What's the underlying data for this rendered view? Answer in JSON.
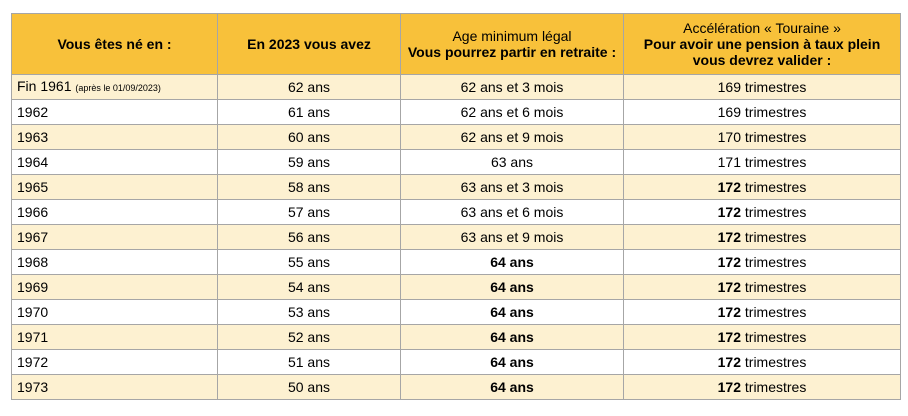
{
  "headers": {
    "col1": "Vous êtes né en :",
    "col2": "En 2023 vous avez",
    "col3_line1": "Age minimum légal",
    "col3_line2": "Vous pourrez partir en retraite :",
    "col4_line1": "Accélération « Touraine »",
    "col4_line2": "Pour avoir une pension à taux plein",
    "col4_line3": "vous devrez valider :"
  },
  "rows": [
    {
      "year": "Fin 1961",
      "year_note": "(après le 01/09/2023)",
      "age2023": "62 ans",
      "min_age": "62 ans et 3 mois",
      "min_age_bold": false,
      "quarters_num": "169",
      "quarters_unit": "trimestres",
      "quarters_bold": false
    },
    {
      "year": "1962",
      "year_note": "",
      "age2023": "61 ans",
      "min_age": "62 ans et 6 mois",
      "min_age_bold": false,
      "quarters_num": "169",
      "quarters_unit": "trimestres",
      "quarters_bold": false
    },
    {
      "year": "1963",
      "year_note": "",
      "age2023": "60 ans",
      "min_age": "62 ans et 9 mois",
      "min_age_bold": false,
      "quarters_num": "170",
      "quarters_unit": "trimestres",
      "quarters_bold": false
    },
    {
      "year": "1964",
      "year_note": "",
      "age2023": "59 ans",
      "min_age": "63 ans",
      "min_age_bold": false,
      "quarters_num": "171",
      "quarters_unit": "trimestres",
      "quarters_bold": false
    },
    {
      "year": "1965",
      "year_note": "",
      "age2023": "58 ans",
      "min_age": "63 ans et 3 mois",
      "min_age_bold": false,
      "quarters_num": "172",
      "quarters_unit": "trimestres",
      "quarters_bold": true
    },
    {
      "year": "1966",
      "year_note": "",
      "age2023": "57 ans",
      "min_age": "63 ans et 6 mois",
      "min_age_bold": false,
      "quarters_num": "172",
      "quarters_unit": "trimestres",
      "quarters_bold": true
    },
    {
      "year": "1967",
      "year_note": "",
      "age2023": "56 ans",
      "min_age": "63 ans et 9 mois",
      "min_age_bold": false,
      "quarters_num": "172",
      "quarters_unit": "trimestres",
      "quarters_bold": true
    },
    {
      "year": "1968",
      "year_note": "",
      "age2023": "55 ans",
      "min_age": "64 ans",
      "min_age_bold": true,
      "quarters_num": "172",
      "quarters_unit": "trimestres",
      "quarters_bold": true
    },
    {
      "year": "1969",
      "year_note": "",
      "age2023": "54 ans",
      "min_age": "64 ans",
      "min_age_bold": true,
      "quarters_num": "172",
      "quarters_unit": "trimestres",
      "quarters_bold": true
    },
    {
      "year": "1970",
      "year_note": "",
      "age2023": "53 ans",
      "min_age": "64 ans",
      "min_age_bold": true,
      "quarters_num": "172",
      "quarters_unit": "trimestres",
      "quarters_bold": true
    },
    {
      "year": "1971",
      "year_note": "",
      "age2023": "52 ans",
      "min_age": "64 ans",
      "min_age_bold": true,
      "quarters_num": "172",
      "quarters_unit": "trimestres",
      "quarters_bold": true
    },
    {
      "year": "1972",
      "year_note": "",
      "age2023": "51 ans",
      "min_age": "64 ans",
      "min_age_bold": true,
      "quarters_num": "172",
      "quarters_unit": "trimestres",
      "quarters_bold": true
    },
    {
      "year": "1973",
      "year_note": "",
      "age2023": "50 ans",
      "min_age": "64 ans",
      "min_age_bold": true,
      "quarters_num": "172",
      "quarters_unit": "trimestres",
      "quarters_bold": true
    }
  ],
  "colors": {
    "header_bg": "#f8c13a",
    "alt_row_bg": "#fdf1d1",
    "plain_row_bg": "#ffffff",
    "border": "#a6a6a6"
  }
}
